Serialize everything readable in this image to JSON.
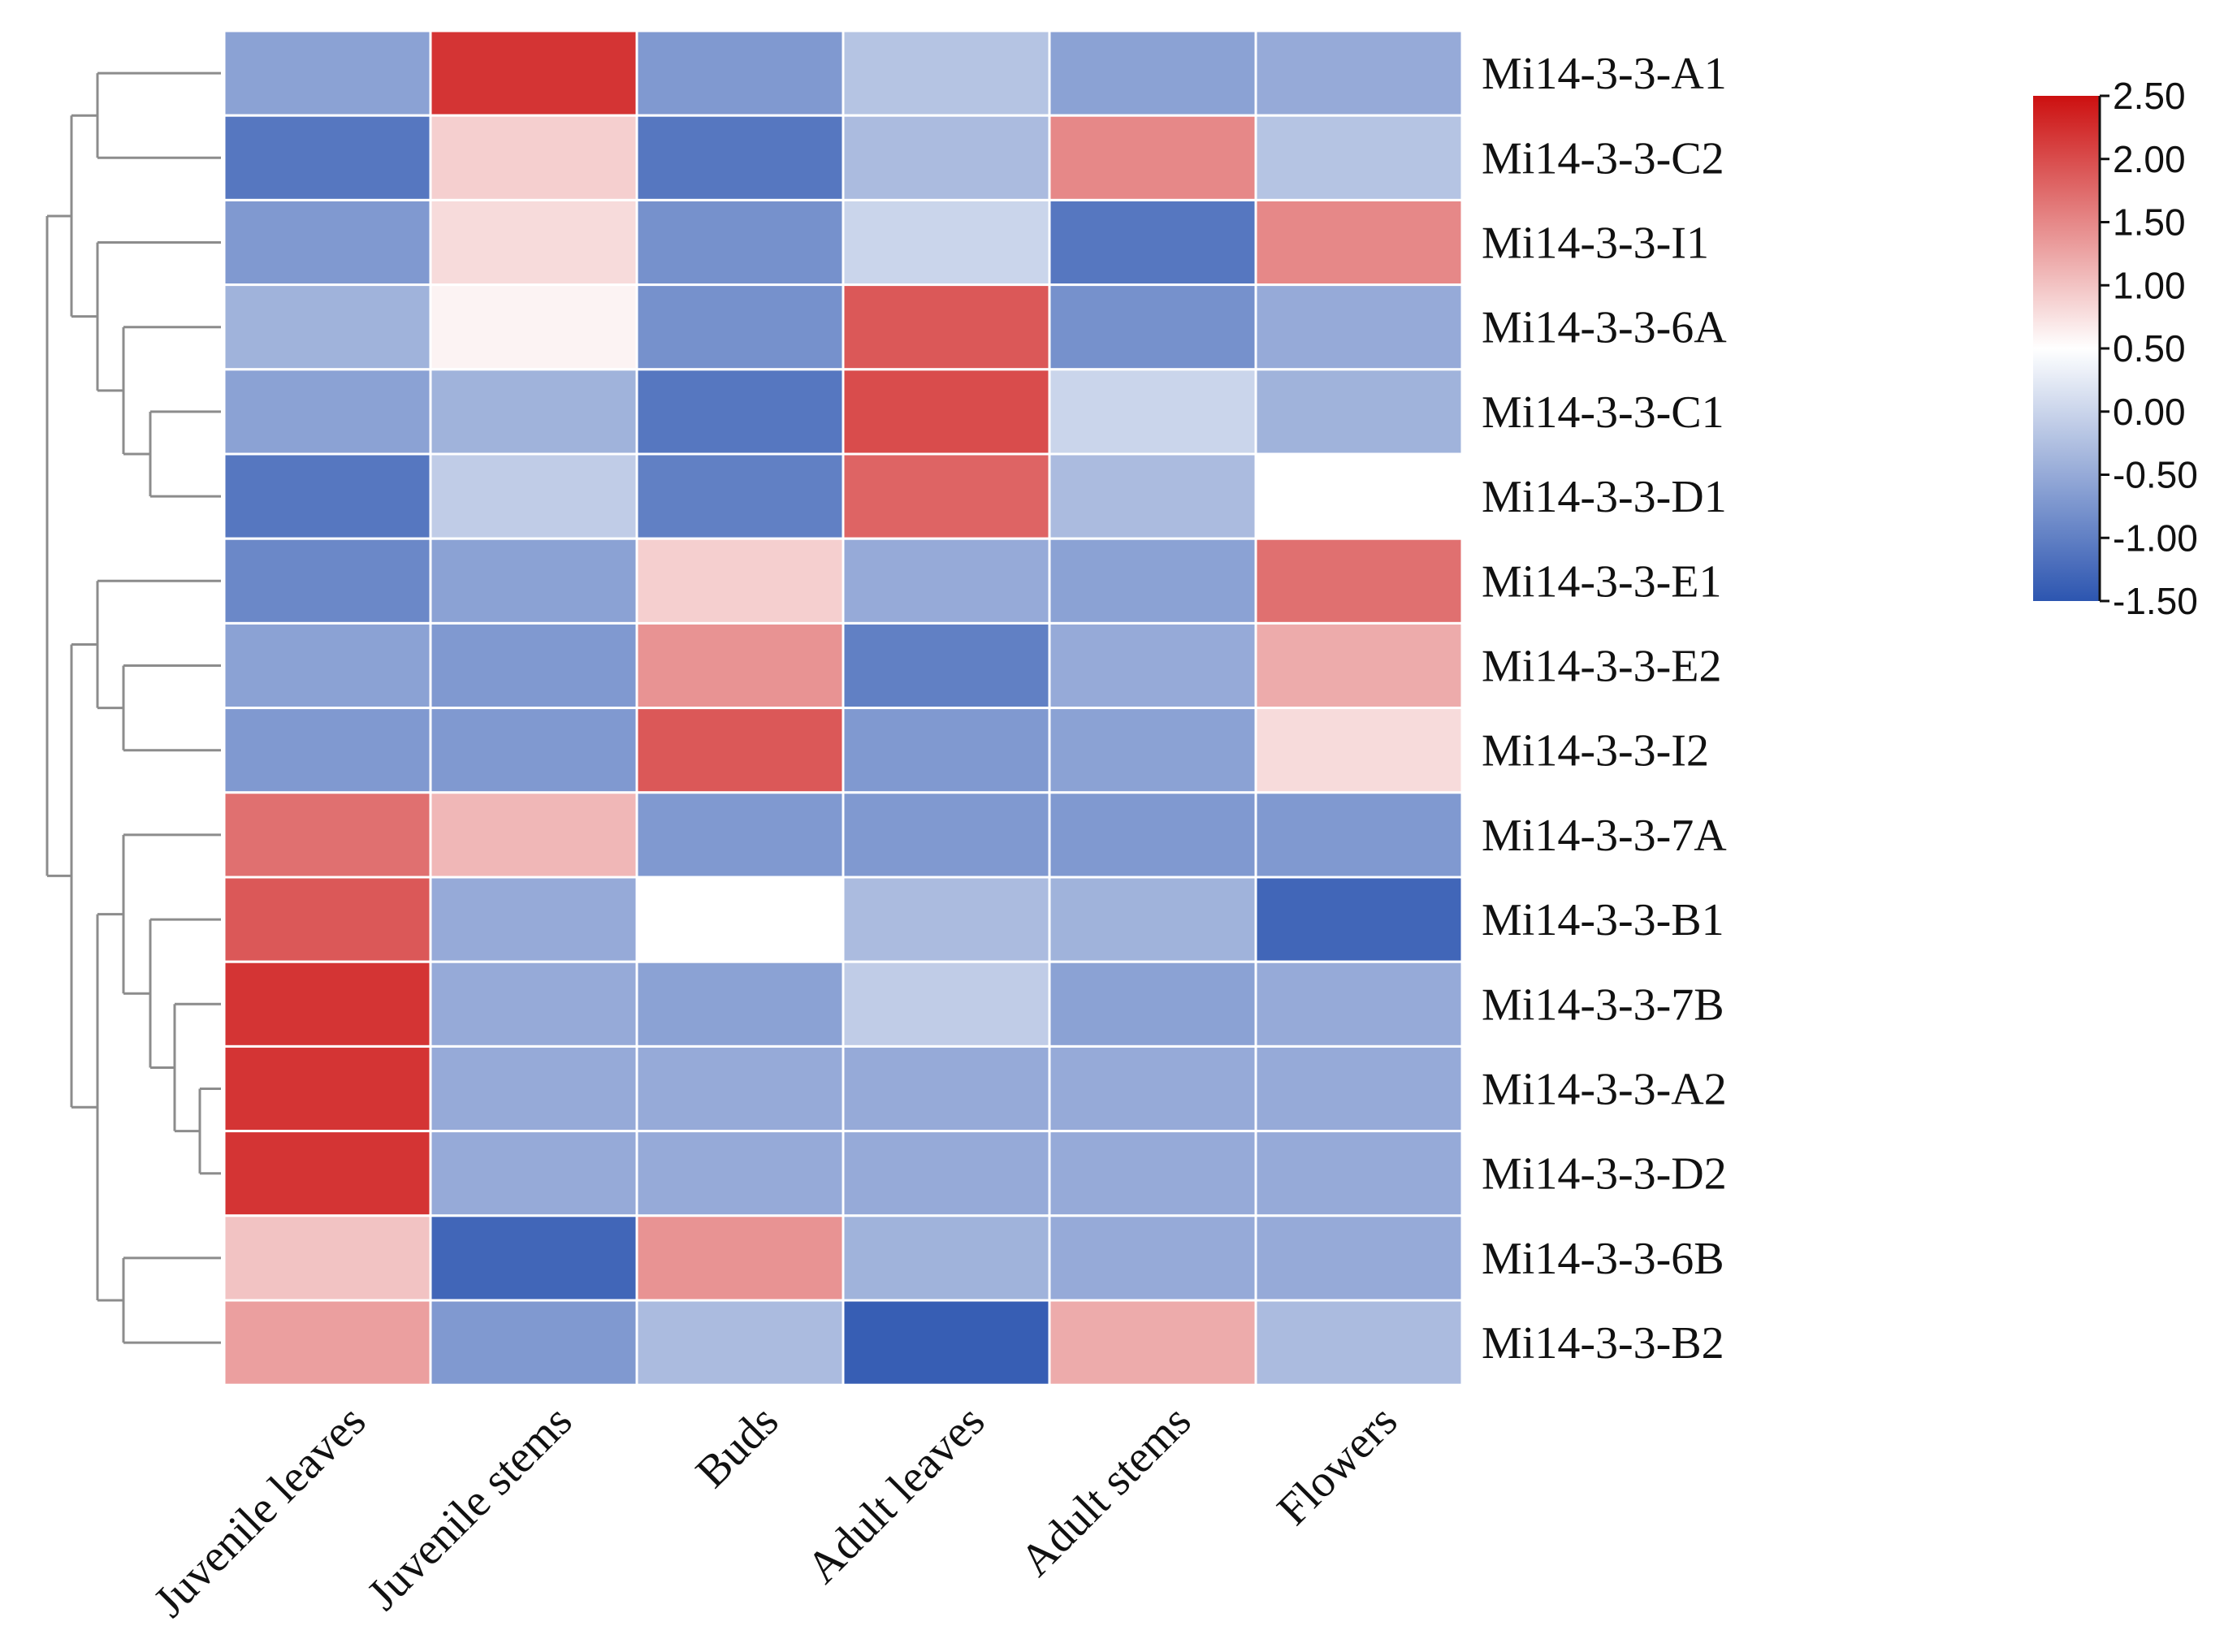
{
  "chart_data": {
    "type": "heatmap",
    "title": "",
    "xlabel": "",
    "ylabel": "",
    "columns": [
      "Juvenile leaves",
      "Juvenile stems",
      "Buds",
      "Adult leaves",
      "Adult stems",
      "Flowers"
    ],
    "rows": [
      "Mi14-3-3-A1",
      "Mi14-3-3-C2",
      "Mi14-3-3-I1",
      "Mi14-3-3-6A",
      "Mi14-3-3-C1",
      "Mi14-3-3-D1",
      "Mi14-3-3-E1",
      "Mi14-3-3-E2",
      "Mi14-3-3-I2",
      "Mi14-3-3-7A",
      "Mi14-3-3-B1",
      "Mi14-3-3-7B",
      "Mi14-3-3-A2",
      "Mi14-3-3-D2",
      "Mi14-3-3-6B",
      "Mi14-3-3-B2"
    ],
    "values": [
      [
        -0.6,
        2.2,
        -0.7,
        -0.2,
        -0.6,
        -0.5
      ],
      [
        -1.1,
        0.9,
        -1.1,
        -0.3,
        1.5,
        -0.2
      ],
      [
        -0.7,
        0.8,
        -0.8,
        0.0,
        -1.1,
        1.5
      ],
      [
        -0.4,
        0.6,
        -0.8,
        1.9,
        -0.8,
        -0.5
      ],
      [
        -0.6,
        -0.4,
        -1.1,
        2.0,
        0.0,
        -0.4
      ],
      [
        -1.1,
        -0.1,
        -1.0,
        1.8,
        -0.3,
        0.5
      ],
      [
        -0.9,
        -0.6,
        0.9,
        -0.5,
        -0.6,
        1.7
      ],
      [
        -0.6,
        -0.7,
        1.4,
        -1.0,
        -0.5,
        1.2
      ],
      [
        -0.7,
        -0.7,
        1.9,
        -0.7,
        -0.6,
        0.8
      ],
      [
        1.7,
        1.1,
        -0.7,
        -0.7,
        -0.7,
        -0.7
      ],
      [
        1.9,
        -0.5,
        0.5,
        -0.3,
        -0.4,
        -1.3
      ],
      [
        2.2,
        -0.5,
        -0.6,
        -0.1,
        -0.6,
        -0.5
      ],
      [
        2.2,
        -0.5,
        -0.5,
        -0.5,
        -0.5,
        -0.5
      ],
      [
        2.2,
        -0.5,
        -0.5,
        -0.5,
        -0.5,
        -0.5
      ],
      [
        1.0,
        -1.3,
        1.4,
        -0.4,
        -0.5,
        -0.5
      ],
      [
        1.3,
        -0.7,
        -0.3,
        -1.4,
        1.2,
        -0.3
      ]
    ],
    "color_scale": {
      "min": -1.5,
      "max": 2.5,
      "mid": 0.5,
      "low_color": "#2c55b0",
      "mid_color": "#ffffff",
      "high_color": "#cc1010",
      "ticks": [
        "2.50",
        "2.00",
        "1.50",
        "1.00",
        "0.50",
        "0.00",
        "-0.50",
        "-1.00",
        "-1.50"
      ]
    },
    "row_dendrogram": true,
    "legend_position": "top-right"
  }
}
